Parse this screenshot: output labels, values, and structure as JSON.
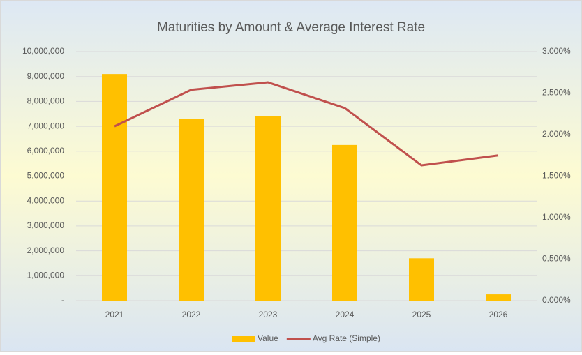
{
  "chart_data": {
    "type": "bar",
    "title": "Maturities by Amount & Average Interest Rate",
    "categories": [
      "2021",
      "2022",
      "2023",
      "2024",
      "2025",
      "2026"
    ],
    "series": [
      {
        "name": "Value",
        "type": "bar",
        "color": "#ffc000",
        "values": [
          9100000,
          7300000,
          7400000,
          6250000,
          1700000,
          250000
        ]
      },
      {
        "name": "Avg Rate (Simple)",
        "type": "line",
        "axis": "y2",
        "color": "#c0504d",
        "values": [
          2.1,
          2.54,
          2.63,
          2.32,
          1.63,
          1.75
        ]
      }
    ],
    "ylim": [
      0,
      10000000
    ],
    "yticks": [
      {
        "value": 0,
        "label": "-"
      },
      {
        "value": 1000000,
        "label": "1,000,000"
      },
      {
        "value": 2000000,
        "label": "2,000,000"
      },
      {
        "value": 3000000,
        "label": "3,000,000"
      },
      {
        "value": 4000000,
        "label": "4,000,000"
      },
      {
        "value": 5000000,
        "label": "5,000,000"
      },
      {
        "value": 6000000,
        "label": "6,000,000"
      },
      {
        "value": 7000000,
        "label": "7,000,000"
      },
      {
        "value": 8000000,
        "label": "8,000,000"
      },
      {
        "value": 9000000,
        "label": "9,000,000"
      },
      {
        "value": 10000000,
        "label": "10,000,000"
      }
    ],
    "y2lim": [
      0,
      3
    ],
    "y2ticks": [
      {
        "value": 0,
        "label": "0.000%"
      },
      {
        "value": 0.5,
        "label": "0.500%"
      },
      {
        "value": 1,
        "label": "1.000%"
      },
      {
        "value": 1.5,
        "label": "1.500%"
      },
      {
        "value": 2,
        "label": "2.000%"
      },
      {
        "value": 2.5,
        "label": "2.500%"
      },
      {
        "value": 3,
        "label": "3.000%"
      }
    ],
    "grid": true,
    "legend": "bottom"
  }
}
